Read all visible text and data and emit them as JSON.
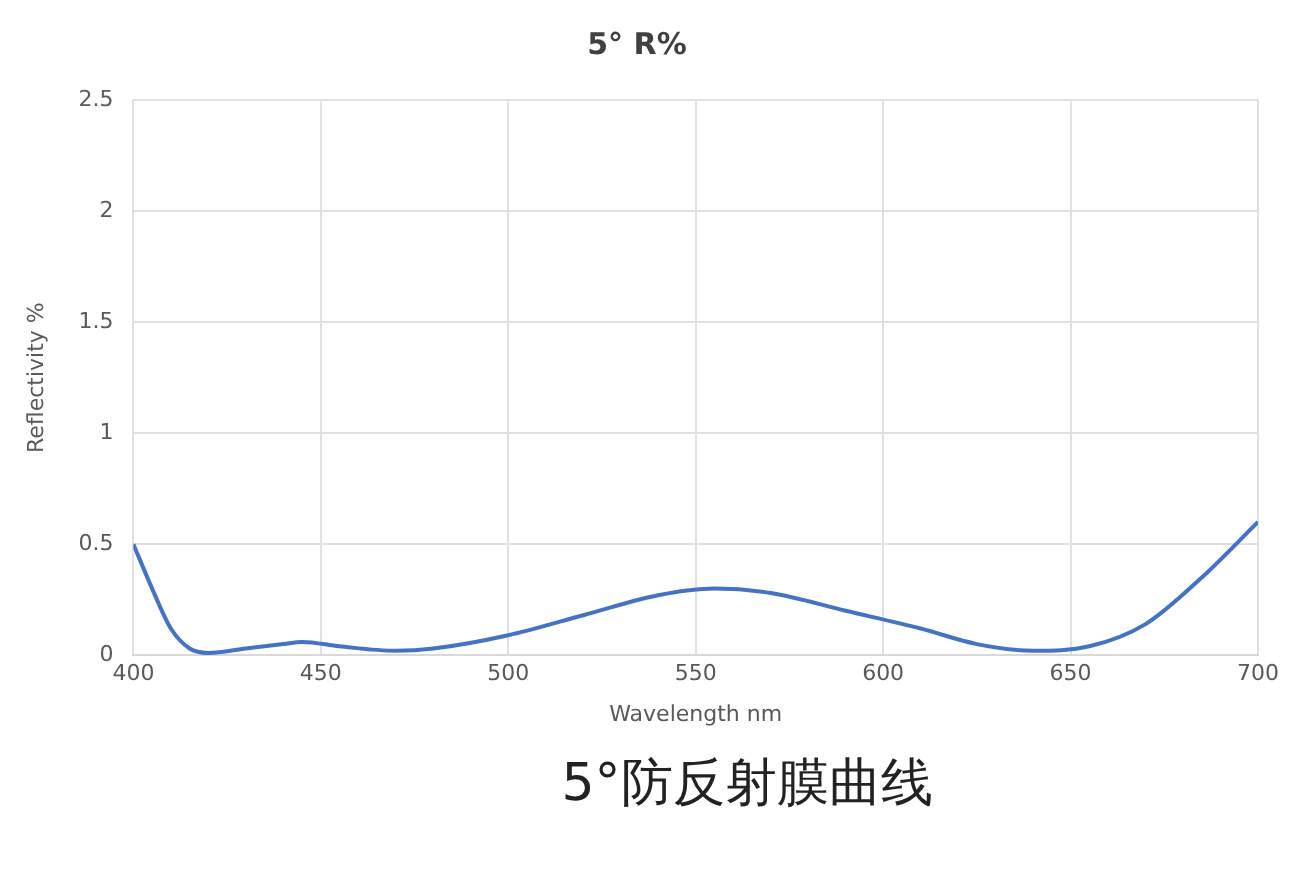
{
  "chart_data": {
    "type": "line",
    "title": "5° R%",
    "xlabel": "Wavelength nm",
    "ylabel": "Reflectivity %",
    "annotations": [
      "5°防反射膜曲线"
    ],
    "x": [
      400,
      405,
      410,
      415,
      420,
      430,
      440,
      445,
      455,
      470,
      480,
      500,
      520,
      540,
      555,
      570,
      590,
      610,
      625,
      640,
      655,
      670,
      685,
      700
    ],
    "series": [
      {
        "color": "#4472c4",
        "values": [
          0.5,
          0.3,
          0.12,
          0.03,
          0.01,
          0.03,
          0.05,
          0.06,
          0.04,
          0.02,
          0.03,
          0.09,
          0.18,
          0.27,
          0.3,
          0.28,
          0.2,
          0.12,
          0.05,
          0.02,
          0.04,
          0.14,
          0.35,
          0.6
        ]
      }
    ],
    "xlim": [
      400,
      700
    ],
    "xticks": [
      400,
      450,
      500,
      550,
      600,
      650,
      700
    ],
    "ylim": [
      0,
      2.5
    ],
    "yticks": [
      0,
      0.5,
      1,
      1.5,
      2,
      2.5
    ],
    "grid": true,
    "legend": false,
    "marker": "none",
    "line_style": "solid"
  }
}
